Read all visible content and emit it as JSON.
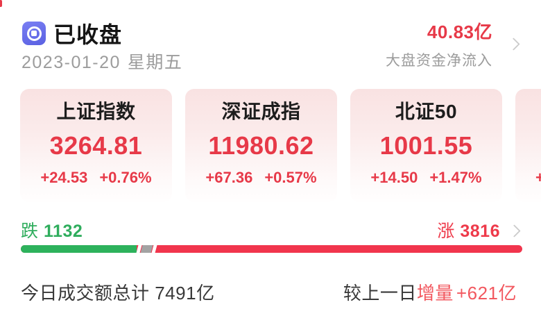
{
  "header": {
    "status": "已收盘",
    "date": "2023-01-20",
    "weekday": "星期五",
    "net_inflow": {
      "value": "40.83亿",
      "label": "大盘资金净流入"
    }
  },
  "cards": [
    {
      "title": "上证指数",
      "value": "3264.81",
      "change": "+24.53",
      "pct": "+0.76%"
    },
    {
      "title": "深证成指",
      "value": "11980.62",
      "change": "+67.36",
      "pct": "+0.57%"
    },
    {
      "title": "北证50",
      "value": "1001.55",
      "change": "+14.50",
      "pct": "+1.47%"
    },
    {
      "title": "",
      "value": "",
      "change": "+",
      "pct": ""
    }
  ],
  "breadth": {
    "down_label": "跌",
    "down_count": 1132,
    "up_label": "涨",
    "up_count": 3816
  },
  "footer": {
    "turnover": "今日成交额总计 7491亿",
    "compare_prefix": "较上一日",
    "compare_highlight": "增量",
    "compare_value": "+621亿"
  },
  "colors": {
    "red": "#e73948",
    "bar_red": "#f1354d",
    "green": "#2fad5d",
    "bar_green": "#2db25c",
    "bar_gray": "#a3a3a3",
    "footer_red": "#f2585f",
    "muted_gray": "#9c9c9c",
    "icon_blue": "#6a70ea"
  }
}
